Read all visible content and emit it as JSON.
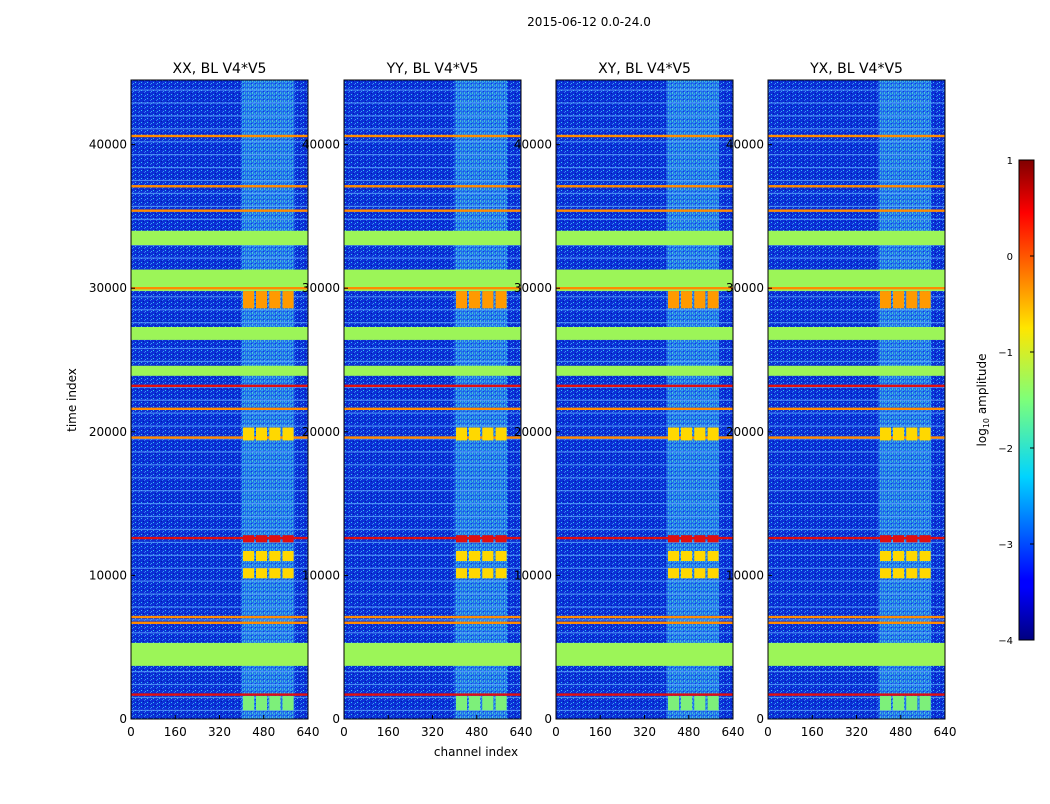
{
  "figure": {
    "suptitle": "2015-06-12 0.0-24.0",
    "xlabel": "channel index",
    "ylabel": "time index"
  },
  "colors": {
    "bg_dark_blue": "#0b2fd6",
    "band_green": "#9cf558",
    "line_orange": "#ff8a00",
    "line_red": "#e01010",
    "cyan_noise": "#37d6e8"
  },
  "chart_data": {
    "type": "heatmap",
    "panels": [
      {
        "title": "XX, BL V4*V5"
      },
      {
        "title": "YY, BL V4*V5"
      },
      {
        "title": "XY, BL V4*V5"
      },
      {
        "title": "YX, BL V4*V5"
      }
    ],
    "x_ticks": [
      "0",
      "160",
      "320",
      "480",
      "640"
    ],
    "y_ticks": [
      "0",
      "10000",
      "20000",
      "30000",
      "40000"
    ],
    "xlim": [
      0,
      640
    ],
    "ylim": [
      0,
      44500
    ],
    "colorscale": "jet",
    "colorbar": {
      "label_prefix": "log",
      "label_sub": "10",
      "label_suffix": " amplitude",
      "ticks": [
        "1",
        "0",
        "−1",
        "−2",
        "−3",
        "−4"
      ],
      "range": [
        -4,
        1
      ]
    },
    "features": {
      "wide_green_bands_time": [
        [
          3700,
          5300
        ],
        [
          26400,
          27300
        ],
        [
          29800,
          31300
        ],
        [
          33000,
          34000
        ],
        [
          23900,
          24600
        ]
      ],
      "orange_lines_time": [
        6700,
        7100,
        12600,
        19600,
        21600,
        23200,
        35400,
        37100,
        1700,
        30000,
        40600
      ],
      "rfi_channel_range": [
        400,
        590
      ],
      "rfi_block_channels": [
        [
          405,
          445
        ],
        [
          452,
          492
        ],
        [
          500,
          540
        ],
        [
          548,
          588
        ]
      ],
      "rfi_hot_times": [
        [
          28600,
          29800
        ],
        [
          12300,
          12800
        ],
        [
          11000,
          11700
        ],
        [
          9800,
          10500
        ],
        [
          19400,
          20300
        ]
      ]
    }
  }
}
